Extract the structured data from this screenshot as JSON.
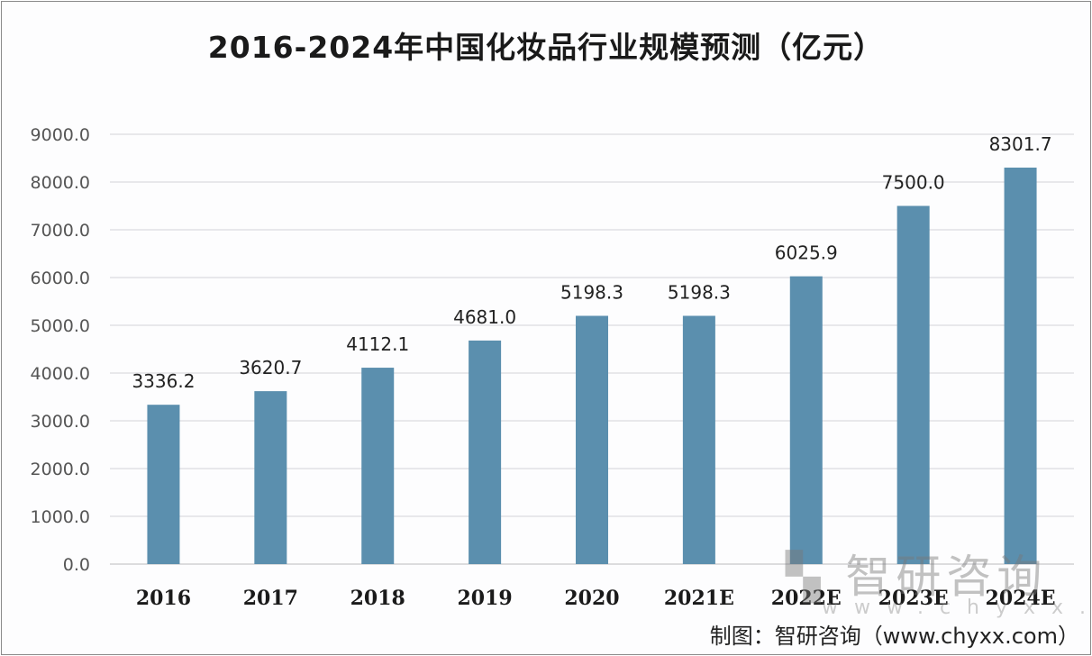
{
  "chart_data": {
    "type": "bar",
    "title": "2016-2024年中国化妆品行业规模预测（亿元）",
    "categories": [
      "2016",
      "2017",
      "2018",
      "2019",
      "2020",
      "2021E",
      "2022E",
      "2023E",
      "2024E"
    ],
    "values": [
      3336.2,
      3620.7,
      4112.1,
      4681.0,
      5198.3,
      5198.3,
      6025.9,
      7500.0,
      8301.7
    ],
    "data_labels": [
      "3336.2",
      "3620.7",
      "4112.1",
      "4681.0",
      "5198.3",
      "5198.3",
      "6025.9",
      "7500.0",
      "8301.7"
    ],
    "ylim": [
      0,
      9000
    ],
    "yticks": [
      "0.0",
      "1000.0",
      "2000.0",
      "3000.0",
      "4000.0",
      "5000.0",
      "6000.0",
      "7000.0",
      "8000.0",
      "9000.0"
    ],
    "grid": true,
    "bar_color": "#5b8fae",
    "xlabel": "",
    "ylabel": ""
  },
  "source": "制图：智研咨询（www.chyxx.com）",
  "watermark": {
    "name": "智研咨询",
    "url": "www.chyxx.com"
  }
}
